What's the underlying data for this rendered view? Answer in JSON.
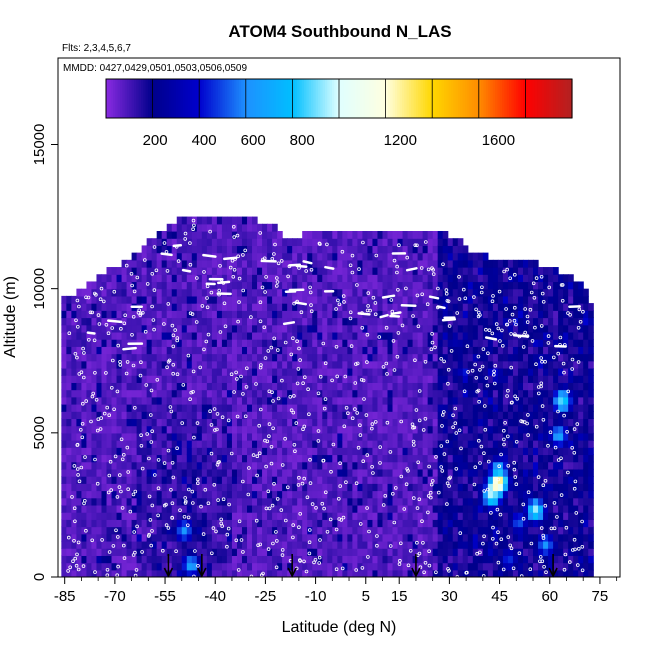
{
  "chart_data": {
    "type": "heatmap",
    "title": "ATOM4 Southbound N_LAS",
    "flights_label": "Flts: 2,3,4,5,6,7",
    "dates_label": "MMDD: 0427,0429,0501,0503,0506,0509",
    "xlabel": "Latitude (deg N)",
    "ylabel": "Altitude (m)",
    "xlim": [
      -87,
      81
    ],
    "ylim": [
      0,
      18000
    ],
    "x_ticks": [
      -85,
      -70,
      -55,
      -40,
      -25,
      -10,
      5,
      15,
      30,
      45,
      60,
      75
    ],
    "x_tick_labels": [
      "-85",
      "-70",
      "-55",
      "-40",
      "-25",
      "-10",
      "5",
      "15",
      "30",
      "45",
      "60",
      "75"
    ],
    "y_ticks": [
      0,
      5000,
      10000,
      15000
    ],
    "y_tick_labels": [
      "0",
      "5000",
      "10000",
      "15000"
    ],
    "colorbar": {
      "min": 0,
      "max": 1900,
      "bins": 10,
      "tick_values": [
        200,
        400,
        600,
        800,
        1200,
        1600
      ],
      "tick_labels": [
        "200",
        "400",
        "600",
        "800",
        "1200",
        "1600"
      ],
      "colors": [
        "#8a2be2",
        "#00008b",
        "#0000cd",
        "#1e90ff",
        "#00bfff",
        "#e0ffff",
        "#ffffe0",
        "#ffd700",
        "#ff8c00",
        "#ff0000",
        "#b22222"
      ]
    },
    "domain_extent": {
      "lat_min": -86,
      "lat_max": 72,
      "top_altitude_profile": [
        [
          -86,
          9500
        ],
        [
          -78,
          10000
        ],
        [
          -72,
          10500
        ],
        [
          -65,
          11000
        ],
        [
          -57,
          11800
        ],
        [
          -50,
          12400
        ],
        [
          -30,
          12400
        ],
        [
          -22,
          12000
        ],
        [
          -18,
          11500
        ],
        [
          -12,
          11900
        ],
        [
          5,
          11900
        ],
        [
          15,
          11800
        ],
        [
          25,
          12000
        ],
        [
          34,
          11500
        ],
        [
          36,
          11200
        ],
        [
          42,
          11000
        ],
        [
          55,
          10800
        ],
        [
          65,
          10400
        ],
        [
          70,
          10000
        ],
        [
          72,
          9500
        ]
      ]
    },
    "high_value_cells": [
      {
        "lat": 44,
        "alt": 3200,
        "value": 1250
      },
      {
        "lat": 43,
        "alt": 3000,
        "value": 1150
      },
      {
        "lat": 42,
        "alt": 2700,
        "value": 950
      },
      {
        "lat": 44,
        "alt": 3600,
        "value": 700
      },
      {
        "lat": 55,
        "alt": 2200,
        "value": 900
      },
      {
        "lat": 63,
        "alt": 6000,
        "value": 850
      },
      {
        "lat": 62,
        "alt": 4800,
        "value": 650
      },
      {
        "lat": 58,
        "alt": 1000,
        "value": 600
      },
      {
        "lat": -50,
        "alt": 1500,
        "value": 600
      },
      {
        "lat": -48,
        "alt": 300,
        "value": 650
      },
      {
        "lat": 50,
        "alt": 1800,
        "value": 500
      },
      {
        "lat": 47,
        "alt": 500,
        "value": 450
      }
    ],
    "airport_markers_lat": [
      -54,
      -44,
      -17,
      20,
      61
    ],
    "sample_points": "white open circles at measurement locations"
  }
}
